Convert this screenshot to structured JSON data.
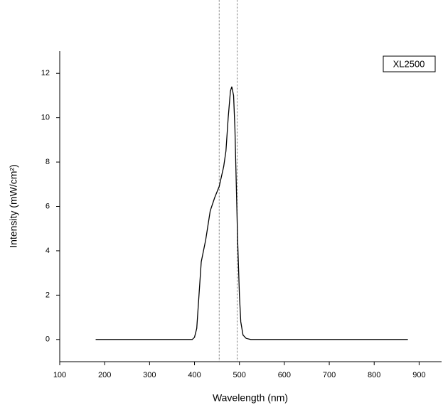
{
  "chart_data": {
    "type": "line",
    "x_label": "Wavelength (nm)",
    "y_label": "Intensity (mW/cm²)",
    "xlim": [
      100,
      950
    ],
    "ylim": [
      -1,
      13
    ],
    "xticks": [
      100,
      200,
      300,
      400,
      500,
      600,
      700,
      800,
      900
    ],
    "yticks": [
      0,
      2,
      4,
      6,
      8,
      10,
      12
    ],
    "vlines": [
      455,
      495
    ],
    "legend": "top-right",
    "series": [
      {
        "name": "XL2500",
        "color": "#000000",
        "x": [
          180,
          395,
          400,
          405,
          410,
          415,
          425,
          435,
          445,
          455,
          465,
          470,
          475,
          480,
          483,
          487,
          490,
          493,
          496,
          500,
          503,
          508,
          515,
          525,
          875
        ],
        "values": [
          0,
          0,
          0.1,
          0.5,
          2,
          3.5,
          4.5,
          5.8,
          6.4,
          6.9,
          7.8,
          8.5,
          10,
          11.2,
          11.4,
          11,
          9.5,
          7,
          4.5,
          2,
          0.8,
          0.2,
          0.05,
          0,
          0
        ]
      }
    ]
  }
}
